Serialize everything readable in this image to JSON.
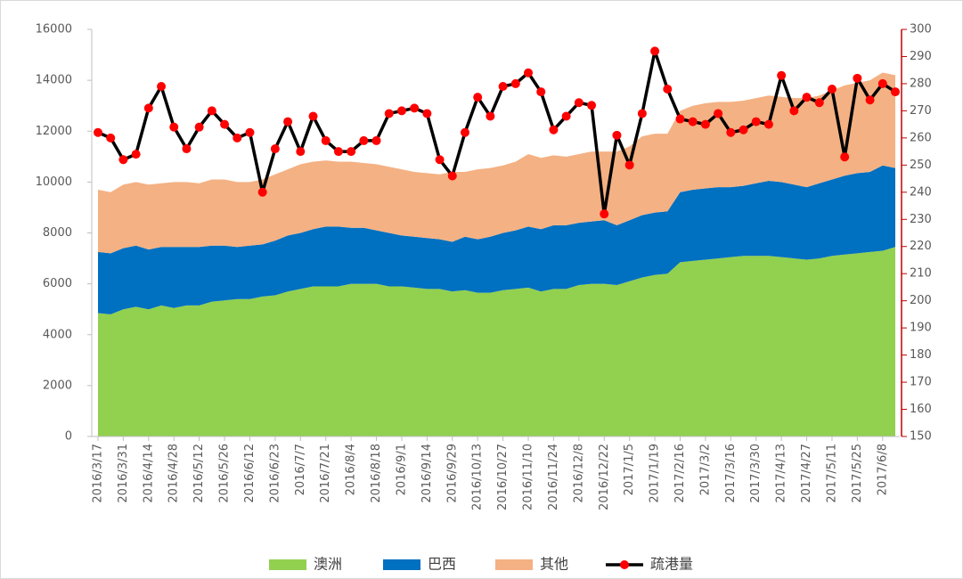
{
  "chart_data": {
    "type": "area",
    "categories": [
      "2016/3/17",
      null,
      "2016/3/31",
      null,
      "2016/4/14",
      null,
      "2016/4/28",
      null,
      "2016/5/12",
      null,
      "2016/5/26",
      null,
      "2016/6/12",
      null,
      "2016/6/23",
      null,
      "2016/7/7",
      null,
      "2016/7/21",
      null,
      "2016/8/4",
      null,
      "2016/8/18",
      null,
      "2016/9/1",
      null,
      "2016/9/14",
      null,
      "2016/9/29",
      null,
      "2016/10/13",
      null,
      "2016/10/27",
      null,
      "2016/11/10",
      null,
      "2016/11/24",
      null,
      "2016/12/8",
      null,
      "2016/12/22",
      null,
      "2017/1/5",
      null,
      "2017/1/19",
      null,
      "2017/2/16",
      null,
      "2017/3/2",
      null,
      "2017/3/16",
      null,
      "2017/3/30",
      null,
      "2017/4/13",
      null,
      "2017/4/27",
      null,
      "2017/5/11",
      null,
      "2017/5/25",
      null,
      "2017/6/8",
      null
    ],
    "series": [
      {
        "name": "澳洲",
        "color": "#92d050",
        "values": [
          4850,
          4800,
          5000,
          5100,
          5000,
          5150,
          5050,
          5150,
          5150,
          5300,
          5350,
          5400,
          5400,
          5500,
          5550,
          5700,
          5800,
          5900,
          5900,
          5900,
          6000,
          6000,
          6000,
          5900,
          5900,
          5850,
          5800,
          5800,
          5700,
          5750,
          5650,
          5650,
          5750,
          5800,
          5850,
          5700,
          5800,
          5800,
          5950,
          6000,
          6000,
          5950,
          6100,
          6250,
          6350,
          6400,
          6850,
          6900,
          6950,
          7000,
          7050,
          7100,
          7100,
          7100,
          7050,
          7000,
          6950,
          7000,
          7100,
          7150,
          7200,
          7250,
          7300,
          7450
        ]
      },
      {
        "name": "巴西",
        "color": "#0070c0",
        "values": [
          2400,
          2400,
          2400,
          2400,
          2350,
          2300,
          2400,
          2300,
          2300,
          2200,
          2150,
          2050,
          2100,
          2050,
          2150,
          2200,
          2200,
          2250,
          2350,
          2350,
          2200,
          2200,
          2100,
          2100,
          2000,
          2000,
          2000,
          1950,
          1950,
          2100,
          2100,
          2200,
          2250,
          2300,
          2400,
          2450,
          2500,
          2500,
          2450,
          2450,
          2500,
          2350,
          2400,
          2450,
          2450,
          2450,
          2750,
          2800,
          2800,
          2800,
          2750,
          2750,
          2850,
          2950,
          2950,
          2900,
          2850,
          2950,
          3000,
          3100,
          3150,
          3150,
          3350,
          3100
        ]
      },
      {
        "name": "其他",
        "color": "#f4b183",
        "values": [
          2450,
          2400,
          2500,
          2500,
          2550,
          2500,
          2550,
          2550,
          2500,
          2600,
          2600,
          2550,
          2500,
          2550,
          2600,
          2600,
          2700,
          2650,
          2600,
          2550,
          2600,
          2550,
          2600,
          2600,
          2600,
          2550,
          2550,
          2550,
          2750,
          2550,
          2750,
          2700,
          2650,
          2700,
          2850,
          2800,
          2750,
          2700,
          2700,
          2750,
          2700,
          2900,
          2900,
          3100,
          3100,
          3050,
          3200,
          3300,
          3350,
          3350,
          3350,
          3350,
          3350,
          3350,
          3350,
          3400,
          3500,
          3450,
          3500,
          3550,
          3550,
          3600,
          3650,
          3650
        ]
      },
      {
        "name": "疏港量",
        "type": "line",
        "axis": "y2",
        "color": "#000000",
        "marker_color": "#ff0000",
        "values": [
          262,
          260,
          252,
          254,
          271,
          279,
          264,
          256,
          264,
          270,
          265,
          260,
          262,
          240,
          256,
          266,
          255,
          268,
          259,
          255,
          255,
          259,
          259,
          269,
          270,
          271,
          269,
          252,
          246,
          262,
          275,
          268,
          279,
          280,
          284,
          277,
          263,
          268,
          273,
          272,
          232,
          261,
          250,
          269,
          292,
          278,
          267,
          266,
          265,
          269,
          262,
          263,
          266,
          265,
          283,
          270,
          275,
          273,
          278,
          253,
          282,
          274,
          280,
          277
        ]
      }
    ],
    "ylim": [
      0,
      16000
    ],
    "yticks": [
      0,
      2000,
      4000,
      6000,
      8000,
      10000,
      12000,
      14000,
      16000
    ],
    "y2lim": [
      150,
      300
    ],
    "y2ticks": [
      150,
      160,
      170,
      180,
      190,
      200,
      210,
      220,
      230,
      240,
      250,
      260,
      270,
      280,
      290,
      300
    ],
    "y2_axis_color": "#c00000",
    "legend": "bottom"
  }
}
